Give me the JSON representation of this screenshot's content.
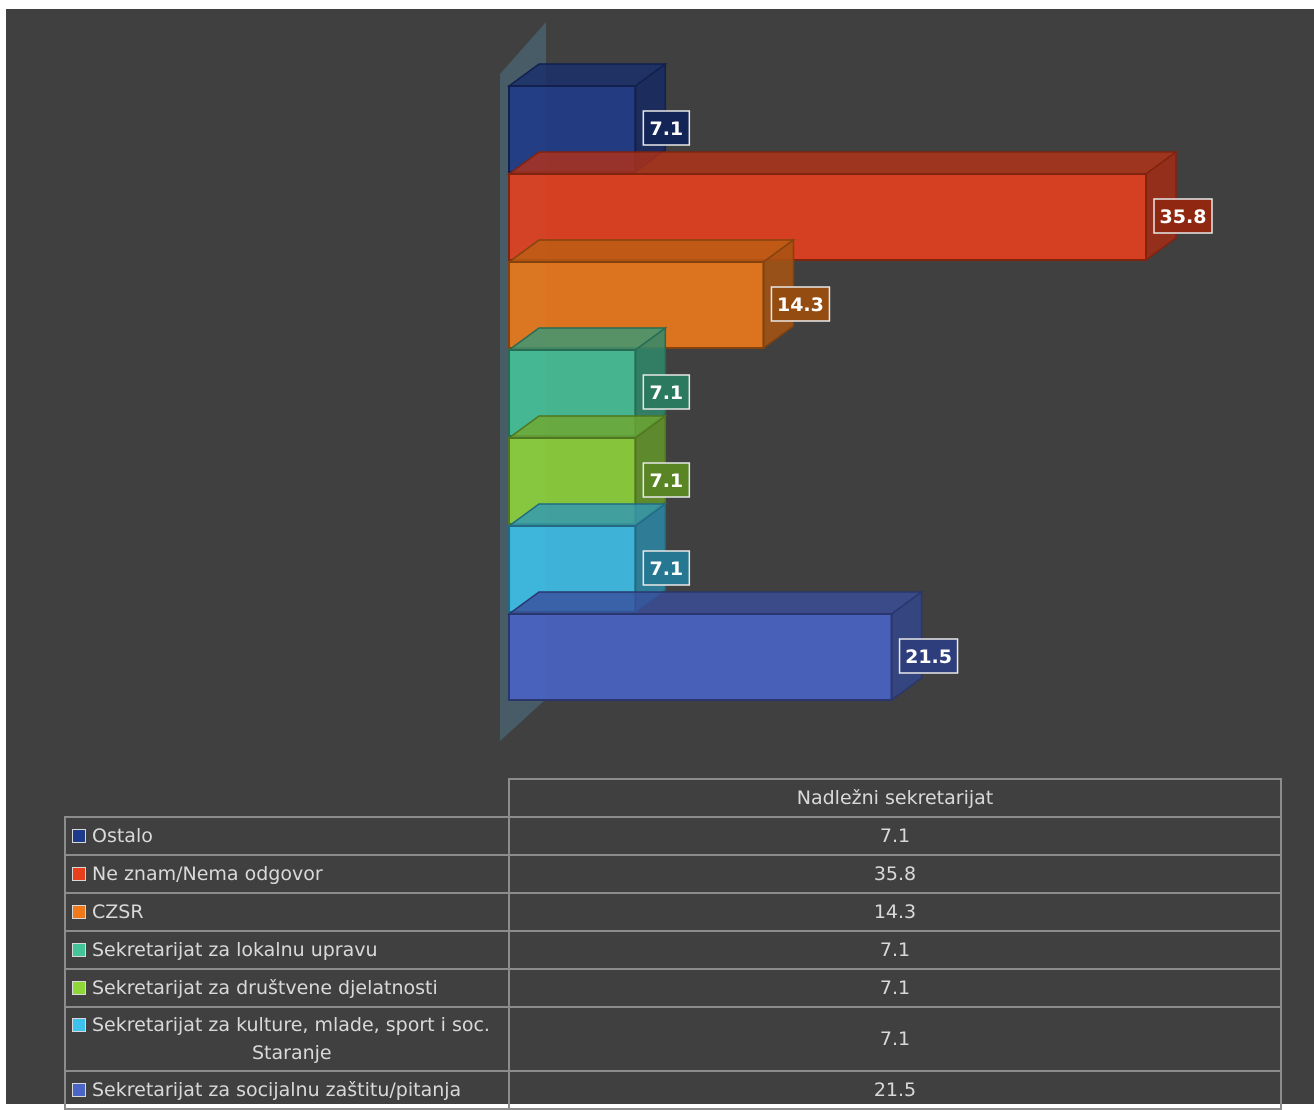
{
  "chart_data": {
    "type": "bar",
    "orientation": "horizontal",
    "three_d": true,
    "series_name": "Nadležni sekretarijat",
    "xlim": [
      0,
      40
    ],
    "data_labels": true,
    "legend": "data-table-below",
    "categories": [
      {
        "label": "Ostalo",
        "value": 7.1,
        "value_text": "7.1",
        "color": "#1f3a8a"
      },
      {
        "label": "Ne znam/Nema odgovor",
        "value": 35.8,
        "value_text": "35.8",
        "color": "#e8401c"
      },
      {
        "label": "CZSR",
        "value": 14.3,
        "value_text": "14.3",
        "color": "#f07a1a"
      },
      {
        "label": "Sekretarijat za lokalnu upravu",
        "value": 7.1,
        "value_text": "7.1",
        "color": "#45c49a"
      },
      {
        "label": "Sekretarijat za društvene djelatnosti",
        "value": 7.1,
        "value_text": "7.1",
        "color": "#8fd63a"
      },
      {
        "label": "Sekretarijat za kulture, mlade, sport i soc.",
        "label_cont": "Staranje",
        "value": 7.1,
        "value_text": "7.1",
        "color": "#3ec1ec"
      },
      {
        "label": "Sekretarijat za socijalnu zaštitu/pitanja",
        "value": 21.5,
        "value_text": "21.5",
        "color": "#4a64c8"
      }
    ]
  }
}
